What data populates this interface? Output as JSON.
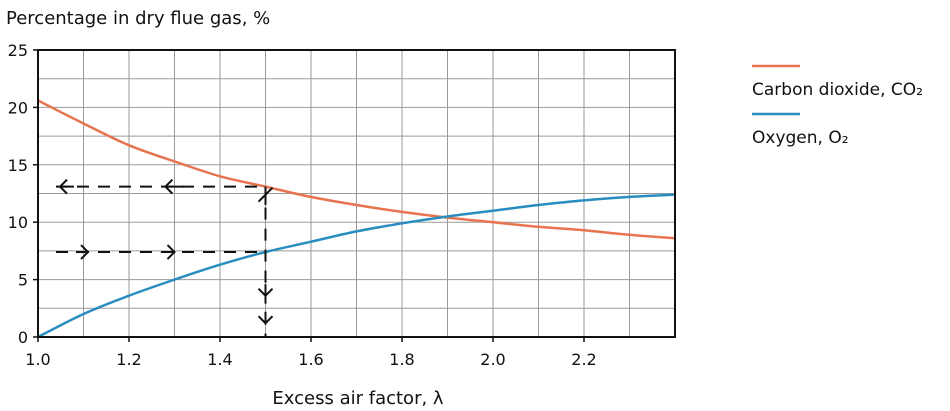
{
  "chart_data": {
    "type": "line",
    "title": "",
    "ylabel": "Percentage in dry flue gas, %",
    "xlabel": "Excess air factor, λ",
    "xlim": [
      1.0,
      2.4
    ],
    "ylim": [
      0,
      25
    ],
    "x_ticks": [
      1.0,
      1.2,
      1.4,
      1.6,
      1.8,
      2.0,
      2.2
    ],
    "y_ticks": [
      0,
      5,
      10,
      15,
      20,
      25
    ],
    "x_tick_labels": [
      "1.0",
      "1.2",
      "1.4",
      "1.6",
      "1.8",
      "2.0",
      "2.2"
    ],
    "y_tick_labels": [
      "0",
      "5",
      "10",
      "15",
      "20",
      "25"
    ],
    "grid": true,
    "legend_position": "right",
    "series": [
      {
        "name": "Carbon dioxide, CO₂",
        "color": "#e8734f",
        "x": [
          1.0,
          1.1,
          1.2,
          1.3,
          1.4,
          1.5,
          1.6,
          1.7,
          1.8,
          1.9,
          2.0,
          2.1,
          2.2,
          2.3,
          2.4
        ],
        "values": [
          20.6,
          18.6,
          16.7,
          15.3,
          14.0,
          13.1,
          12.2,
          11.5,
          10.9,
          10.4,
          10.0,
          9.6,
          9.3,
          8.9,
          8.6
        ]
      },
      {
        "name": "Oxygen, O₂",
        "color": "#2a8dbf",
        "x": [
          1.0,
          1.1,
          1.2,
          1.3,
          1.4,
          1.5,
          1.6,
          1.7,
          1.8,
          1.9,
          2.0,
          2.1,
          2.2,
          2.3,
          2.4
        ],
        "values": [
          0.0,
          2.0,
          3.6,
          5.0,
          6.3,
          7.4,
          8.3,
          9.2,
          9.9,
          10.5,
          11.0,
          11.5,
          11.9,
          12.2,
          12.4
        ]
      }
    ],
    "annotations": {
      "lambda": 1.5,
      "co2_value": 13.1,
      "o2_value": 7.4
    }
  }
}
